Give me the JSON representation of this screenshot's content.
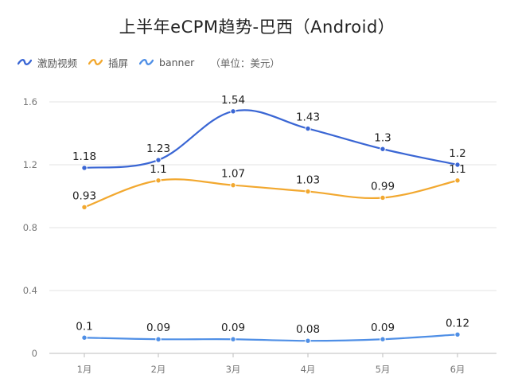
{
  "chart_data": {
    "type": "line",
    "title": "上半年eCPM趋势-巴西（Android）",
    "unit_note": "（单位：美元）",
    "categories": [
      "1月",
      "2月",
      "3月",
      "4月",
      "5月",
      "6月"
    ],
    "ylim": [
      0,
      1.6
    ],
    "yticks": [
      "0",
      "0.4",
      "0.8",
      "1.2",
      "1.6"
    ],
    "ytick_values": [
      0,
      0.4,
      0.8,
      1.2,
      1.6
    ],
    "grid": true,
    "legend_position": "top-left",
    "smooth": true,
    "series": [
      {
        "name": "激励视频",
        "color": "#3a66d4",
        "values": [
          1.18,
          1.23,
          1.54,
          1.43,
          1.3,
          1.2
        ],
        "labels": [
          "1.18",
          "1.23",
          "1.54",
          "1.43",
          "1.3",
          "1.2"
        ]
      },
      {
        "name": "插屏",
        "color": "#f2a82f",
        "values": [
          0.93,
          1.1,
          1.07,
          1.03,
          0.99,
          1.1
        ],
        "labels": [
          "0.93",
          "1.1",
          "1.07",
          "1.03",
          "0.99",
          "1.1"
        ]
      },
      {
        "name": "banner",
        "color": "#4f8fe6",
        "values": [
          0.1,
          0.09,
          0.09,
          0.08,
          0.09,
          0.12
        ],
        "labels": [
          "0.1",
          "0.09",
          "0.09",
          "0.08",
          "0.09",
          "0.12"
        ]
      }
    ]
  }
}
